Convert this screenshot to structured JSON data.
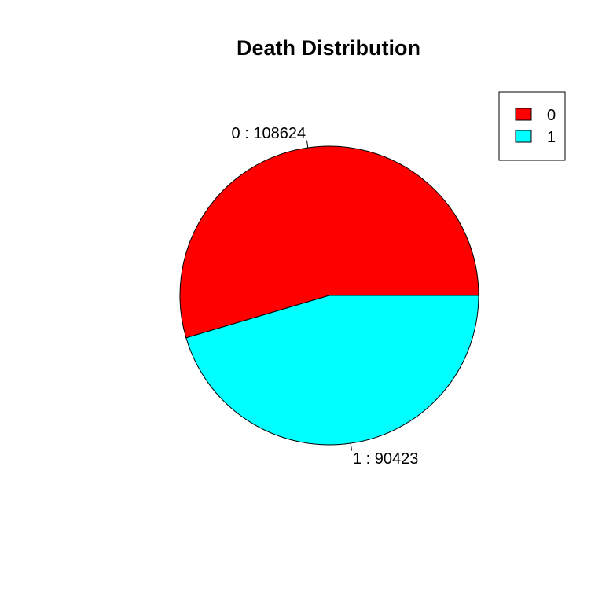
{
  "chart_data": {
    "type": "pie",
    "title": "Death Distribution",
    "categories": [
      "0",
      "1"
    ],
    "values": [
      108624,
      90423
    ],
    "slice_labels": [
      "0 :  108624",
      "1 :  90423"
    ],
    "colors": [
      "#ff0000",
      "#00ffff"
    ],
    "legend": {
      "placement": "top-right",
      "entries": [
        "0",
        "1"
      ]
    }
  }
}
